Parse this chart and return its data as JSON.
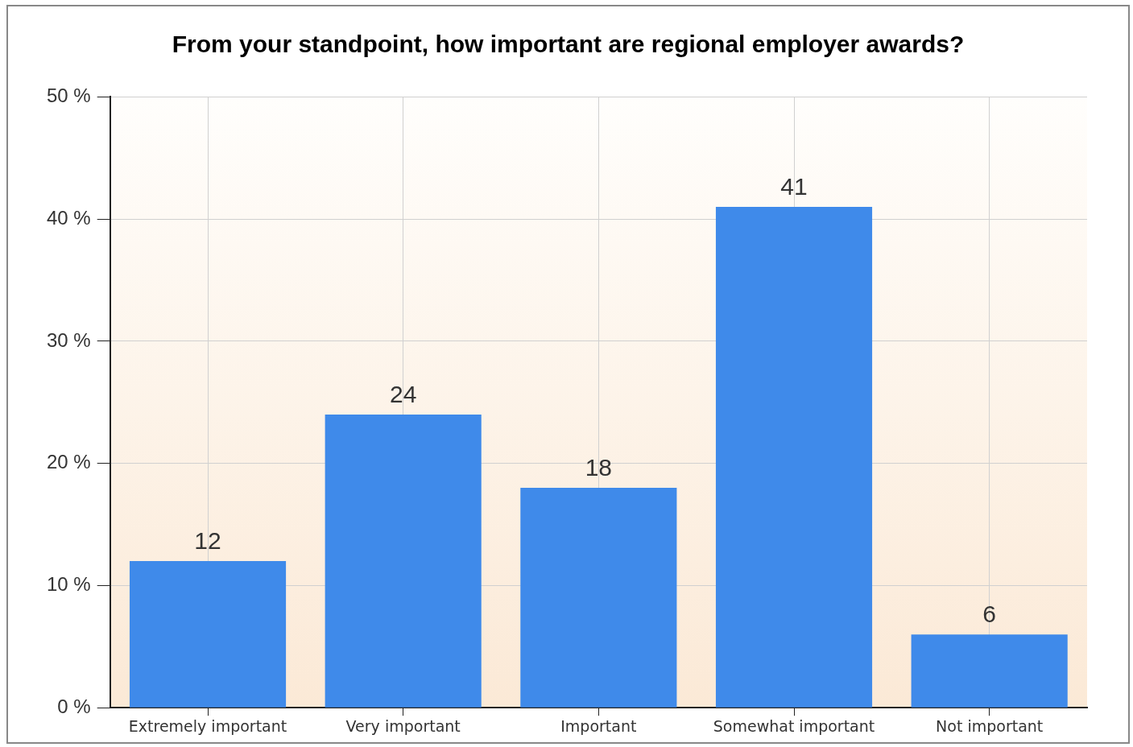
{
  "chart_data": {
    "type": "bar",
    "title": "From your standpoint, how important are regional employer awards?",
    "categories": [
      "Extremely important",
      "Very important",
      "Important",
      "Somewhat important",
      "Not important"
    ],
    "values": [
      12,
      24,
      18,
      41,
      6
    ],
    "color": "#3f8aea",
    "ylim": [
      0,
      50
    ],
    "yticks": [
      {
        "value": 0,
        "label": "0 %"
      },
      {
        "value": 10,
        "label": "10 %"
      },
      {
        "value": 20,
        "label": "20 %"
      },
      {
        "value": 30,
        "label": "30 %"
      },
      {
        "value": 40,
        "label": "40 %"
      },
      {
        "value": 50,
        "label": "50 %"
      }
    ],
    "grid": true,
    "data_labels": true
  }
}
